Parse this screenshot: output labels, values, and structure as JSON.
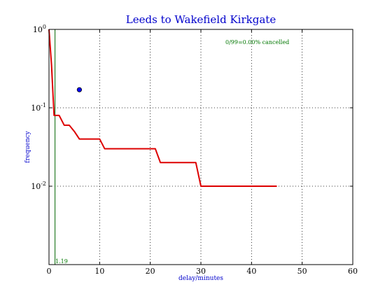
{
  "chart_data": {
    "type": "line",
    "title": "Leeds to Wakefield Kirkgate",
    "xlabel": "delay/minutes",
    "ylabel": "frequency",
    "xlim": [
      0,
      60
    ],
    "ylim": [
      0.001,
      1
    ],
    "yscale": "log",
    "grid": true,
    "x_ticks": [
      0,
      10,
      20,
      30,
      40,
      50,
      60
    ],
    "y_ticks": [
      {
        "value": 1,
        "label_base": "10",
        "label_exp": "0"
      },
      {
        "value": 0.1,
        "label_base": "10",
        "label_exp": "-1"
      },
      {
        "value": 0.01,
        "label_base": "10",
        "label_exp": "-2"
      }
    ],
    "annotation": "0/99=0.00% cancelled",
    "vline": {
      "x": 1.19,
      "label": "1.19",
      "color": "#006600"
    },
    "marker": {
      "x": 6,
      "y": 0.17,
      "color": "#0000ff"
    },
    "series": [
      {
        "color": "#dd0000",
        "x": [
          0,
          0.5,
          1,
          2,
          3,
          4,
          5,
          6,
          7,
          8,
          9,
          10,
          11,
          12,
          13,
          14,
          15,
          16,
          17,
          18,
          19,
          20,
          21,
          22,
          23,
          24,
          25,
          26,
          27,
          28,
          29,
          30,
          31,
          32,
          33,
          34,
          35,
          36,
          37,
          38,
          39,
          40,
          41,
          42,
          43,
          44,
          45
        ],
        "y": [
          1,
          0.35,
          0.08,
          0.08,
          0.06,
          0.06,
          0.05,
          0.04,
          0.04,
          0.04,
          0.04,
          0.04,
          0.03,
          0.03,
          0.03,
          0.03,
          0.03,
          0.03,
          0.03,
          0.03,
          0.03,
          0.03,
          0.03,
          0.02,
          0.02,
          0.02,
          0.02,
          0.02,
          0.02,
          0.02,
          0.02,
          0.01,
          0.01,
          0.01,
          0.01,
          0.01,
          0.01,
          0.01,
          0.01,
          0.01,
          0.01,
          0.01,
          0.01,
          0.01,
          0.01,
          0.01,
          0.01
        ]
      }
    ]
  }
}
